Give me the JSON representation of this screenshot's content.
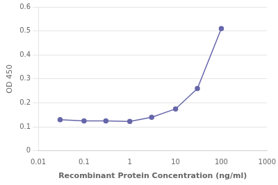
{
  "chart_data": {
    "type": "line",
    "x": [
      0.03,
      0.1,
      0.3,
      1.0,
      3.0,
      10.0,
      30.0,
      100.0
    ],
    "values": [
      0.13,
      0.125,
      0.125,
      0.123,
      0.14,
      0.175,
      0.26,
      0.51
    ],
    "color": "#6666aa",
    "marker": "circle",
    "xlabel": "Recombinant Protein Concentration (ng/ml)",
    "ylabel": "OD 450",
    "log": "x",
    "xlim": [
      0.01,
      1000
    ],
    "ylim": [
      0,
      0.6
    ],
    "xticks": [
      0.01,
      0.1,
      1,
      10,
      100,
      1000
    ],
    "yticks": [
      0,
      0.1,
      0.2,
      0.3,
      0.4,
      0.5,
      0.6
    ],
    "grid": "y"
  }
}
